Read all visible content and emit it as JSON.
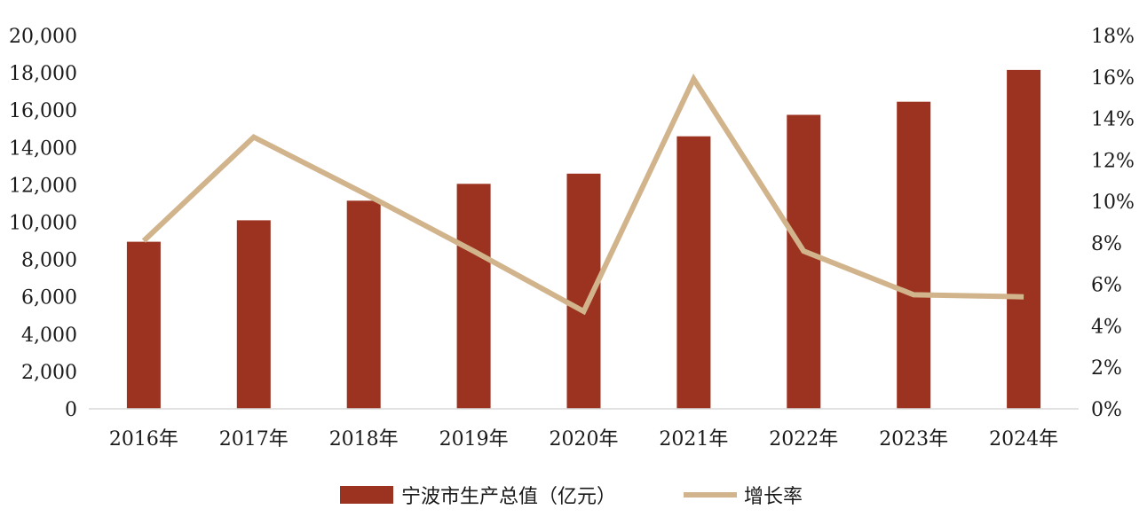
{
  "chart_data": {
    "type": "bar",
    "categories": [
      "2016年",
      "2017年",
      "2018年",
      "2019年",
      "2020年",
      "2021年",
      "2022年",
      "2023年",
      "2024年"
    ],
    "series": [
      {
        "name": "宁波市生产总值（亿元）",
        "type": "bar",
        "axis": "left",
        "color": "#9B3320",
        "values": [
          8950,
          10100,
          11150,
          12050,
          12600,
          14600,
          15750,
          16450,
          18150
        ]
      },
      {
        "name": "增长率",
        "type": "line",
        "axis": "right",
        "color": "#D2B48C",
        "values": [
          8.1,
          13.1,
          10.4,
          7.6,
          4.7,
          15.9,
          7.6,
          5.5,
          5.4
        ]
      }
    ],
    "y_left": {
      "lim": [
        0,
        20000
      ],
      "ticks": [
        "0",
        "2,000",
        "4,000",
        "6,000",
        "8,000",
        "10,000",
        "12,000",
        "14,000",
        "16,000",
        "18,000",
        "20,000"
      ]
    },
    "y_right": {
      "lim": [
        0,
        18
      ],
      "unit": "%",
      "ticks": [
        "0%",
        "2%",
        "4%",
        "6%",
        "8%",
        "10%",
        "12%",
        "14%",
        "16%",
        "18%"
      ]
    },
    "grid": false,
    "legend_position": "bottom"
  }
}
